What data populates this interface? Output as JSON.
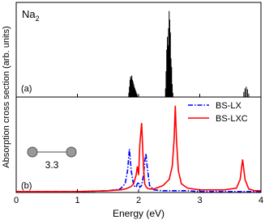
{
  "chart_data": [
    {
      "type": "stick",
      "panel_label": "(a)",
      "molecule": {
        "label": "Na",
        "subscript": "2"
      },
      "x": [
        1.84,
        1.85,
        1.86,
        1.87,
        1.88,
        1.89,
        1.9,
        1.91,
        1.92,
        1.93,
        1.94,
        1.95,
        1.96,
        1.97,
        1.98,
        2.44,
        2.45,
        2.46,
        2.47,
        2.48,
        2.49,
        2.5,
        2.51,
        2.52,
        2.53,
        2.54,
        2.55,
        2.56,
        3.72,
        3.74,
        3.76,
        3.78,
        3.8
      ],
      "values": [
        0.05,
        0.12,
        0.2,
        0.24,
        0.22,
        0.25,
        0.2,
        0.18,
        0.15,
        0.12,
        0.1,
        0.08,
        0.06,
        0.04,
        0.02,
        0.1,
        0.3,
        0.55,
        0.7,
        0.6,
        0.8,
        1.0,
        0.9,
        0.75,
        0.45,
        0.35,
        0.15,
        0.05,
        0.06,
        0.1,
        0.12,
        0.09,
        0.04
      ],
      "color": "#000000",
      "xlim": [
        0,
        4
      ],
      "ylim": [
        0,
        1.1
      ]
    },
    {
      "type": "line",
      "panel_label": "(b)",
      "annotation": "3.3",
      "xlabel": "Energy (eV)",
      "ylabel": "Absorption cross section (arb. units)",
      "x": [
        0,
        0.5,
        1.0,
        1.5,
        1.7,
        1.78,
        1.82,
        1.85,
        1.88,
        1.92,
        1.96,
        1.98,
        2.0,
        2.02,
        2.05,
        2.08,
        2.1,
        2.12,
        2.14,
        2.18,
        2.25,
        2.4,
        2.5,
        2.55,
        2.58,
        2.6,
        2.62,
        2.65,
        2.7,
        2.8,
        3.0,
        3.4,
        3.6,
        3.66,
        3.7,
        3.74,
        3.8,
        3.9,
        4.0
      ],
      "series": [
        {
          "name": "BS-LX",
          "color": "#0000ff",
          "dash": "dashdot",
          "values": [
            0.01,
            0.01,
            0.01,
            0.02,
            0.04,
            0.1,
            0.25,
            0.5,
            0.25,
            0.08,
            0.06,
            0.1,
            0.12,
            0.06,
            0.08,
            0.2,
            0.35,
            0.45,
            0.3,
            0.08,
            0.03,
            0.02,
            0.02,
            0.02,
            0.02,
            0.02,
            0.02,
            0.02,
            0.02,
            0.02,
            0.01,
            0.01,
            0.01,
            0.01,
            0.01,
            0.01,
            0.01,
            0.01,
            0.01
          ]
        },
        {
          "name": "BS-LXC",
          "color": "#ff0000",
          "dash": "solid",
          "values": [
            0.01,
            0.01,
            0.01,
            0.02,
            0.03,
            0.04,
            0.05,
            0.06,
            0.07,
            0.1,
            0.2,
            0.3,
            0.2,
            0.55,
            0.8,
            0.3,
            0.1,
            0.07,
            0.05,
            0.04,
            0.04,
            0.08,
            0.15,
            0.3,
            0.6,
            1.0,
            0.6,
            0.25,
            0.1,
            0.05,
            0.03,
            0.03,
            0.05,
            0.15,
            0.38,
            0.15,
            0.04,
            0.02,
            0.02
          ]
        }
      ],
      "xlim": [
        0,
        4
      ],
      "ylim": [
        0,
        1.1
      ],
      "xticks": [
        0,
        1,
        2,
        3,
        4
      ],
      "legend": "upper right"
    }
  ]
}
